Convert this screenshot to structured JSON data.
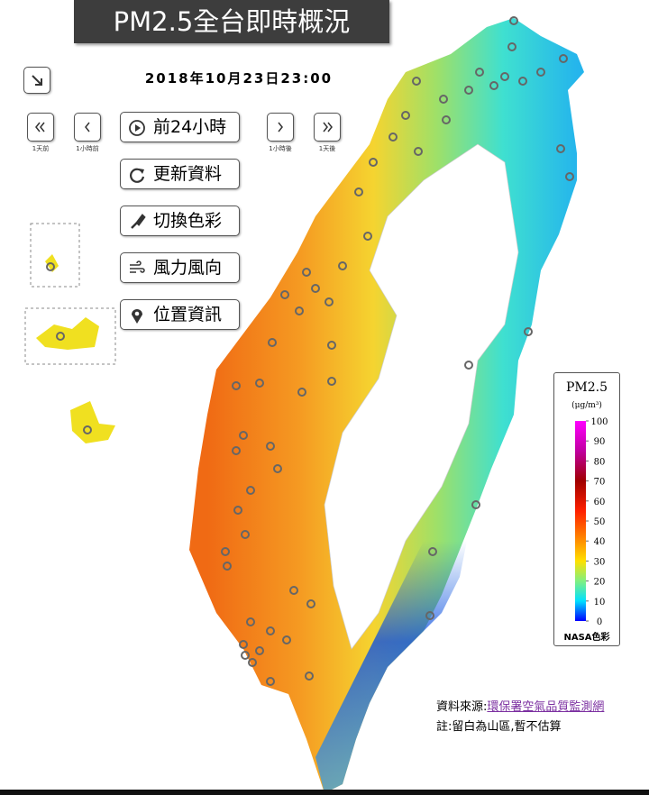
{
  "header": {
    "title": "PM2.5全台即時概況",
    "datetime": "2018年10月23日23:00"
  },
  "nav": {
    "day_back": "1天前",
    "hour_back": "1小時前",
    "hour_forward": "1小時後",
    "day_forward": "1天後"
  },
  "menu": [
    "前24小時",
    "更新資料",
    "切換色彩",
    "風力風向",
    "位置資訊"
  ],
  "legend": {
    "title": "PM2.5",
    "unit": "(μg/m³)",
    "range": [
      0,
      100
    ],
    "ticks": [
      0,
      10,
      20,
      30,
      40,
      50,
      60,
      70,
      80,
      90,
      100
    ],
    "scheme": "NASA色彩"
  },
  "footer": {
    "source_label": "資料來源:",
    "source_link": "環保署空氣品質監測網",
    "note": "註:留白為山區,暫不估算"
  }
}
